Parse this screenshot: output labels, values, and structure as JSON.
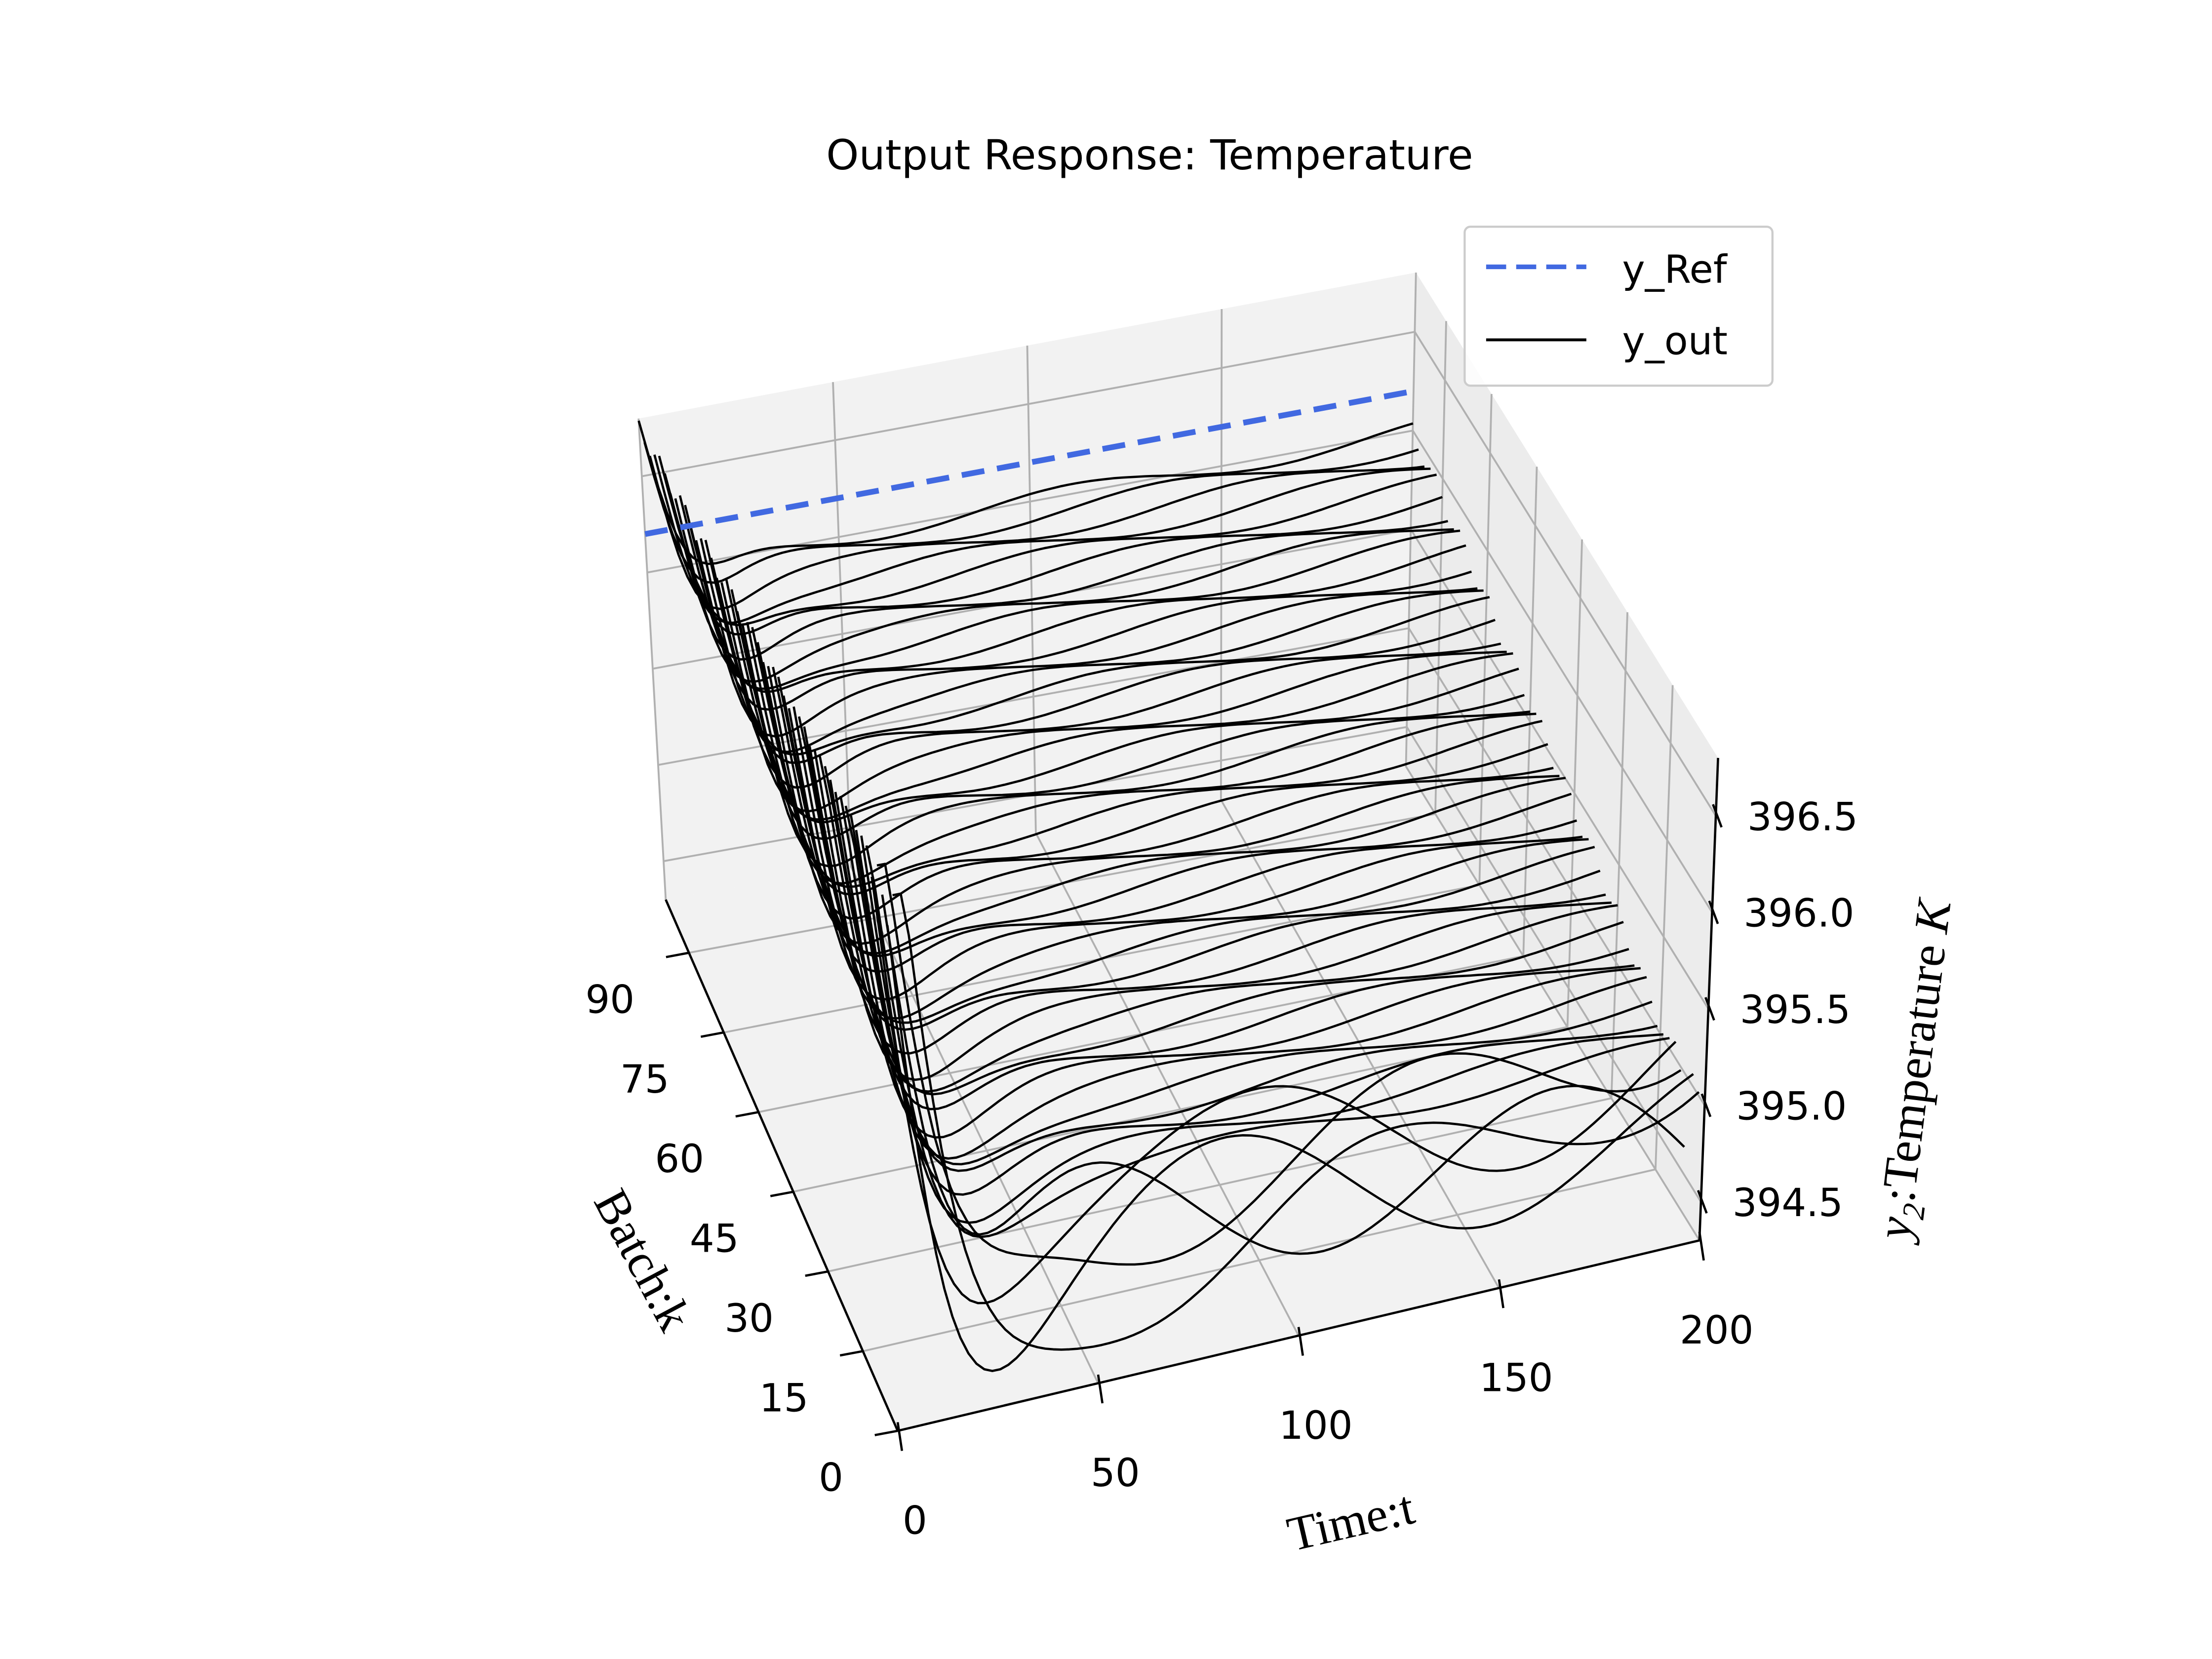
{
  "chart_data": {
    "type": "line",
    "projection": "3d",
    "title": "Output Response: Temperature",
    "xlabel": "Time:t",
    "ylabel": "Batch:k",
    "zlabel": "y_2:Temperature K",
    "zlabel_parts": {
      "var": "y",
      "sub": "2",
      "text": ":Temperature ",
      "unit": "K"
    },
    "x_ticks": [
      "0",
      "50",
      "100",
      "150",
      "200"
    ],
    "y_ticks": [
      "0",
      "15",
      "30",
      "45",
      "60",
      "75",
      "90"
    ],
    "z_ticks": [
      "394.5",
      "395.0",
      "395.5",
      "396.0",
      "396.5"
    ],
    "xlim": [
      0,
      200
    ],
    "ylim": [
      0,
      100
    ],
    "zlim": [
      394.3,
      396.8
    ],
    "grid": true,
    "legend": {
      "position": "top-right",
      "entries": [
        "y_Ref",
        "y_out"
      ]
    },
    "reference": {
      "name": "y_Ref",
      "value": 396.2,
      "batch": 100,
      "t": [
        0,
        200
      ]
    },
    "series_model": {
      "name": "y_out",
      "batches": 100,
      "t_step": 2,
      "plateau_early_batch": 394.8,
      "plateau_late_batch": 396.0,
      "initial_peak": 396.9
    }
  },
  "colors": {
    "reference": "#4169e1",
    "output": "#000000",
    "pane": "#f2f2f2",
    "grid": "#b0b0b0",
    "axis": "#000000"
  }
}
